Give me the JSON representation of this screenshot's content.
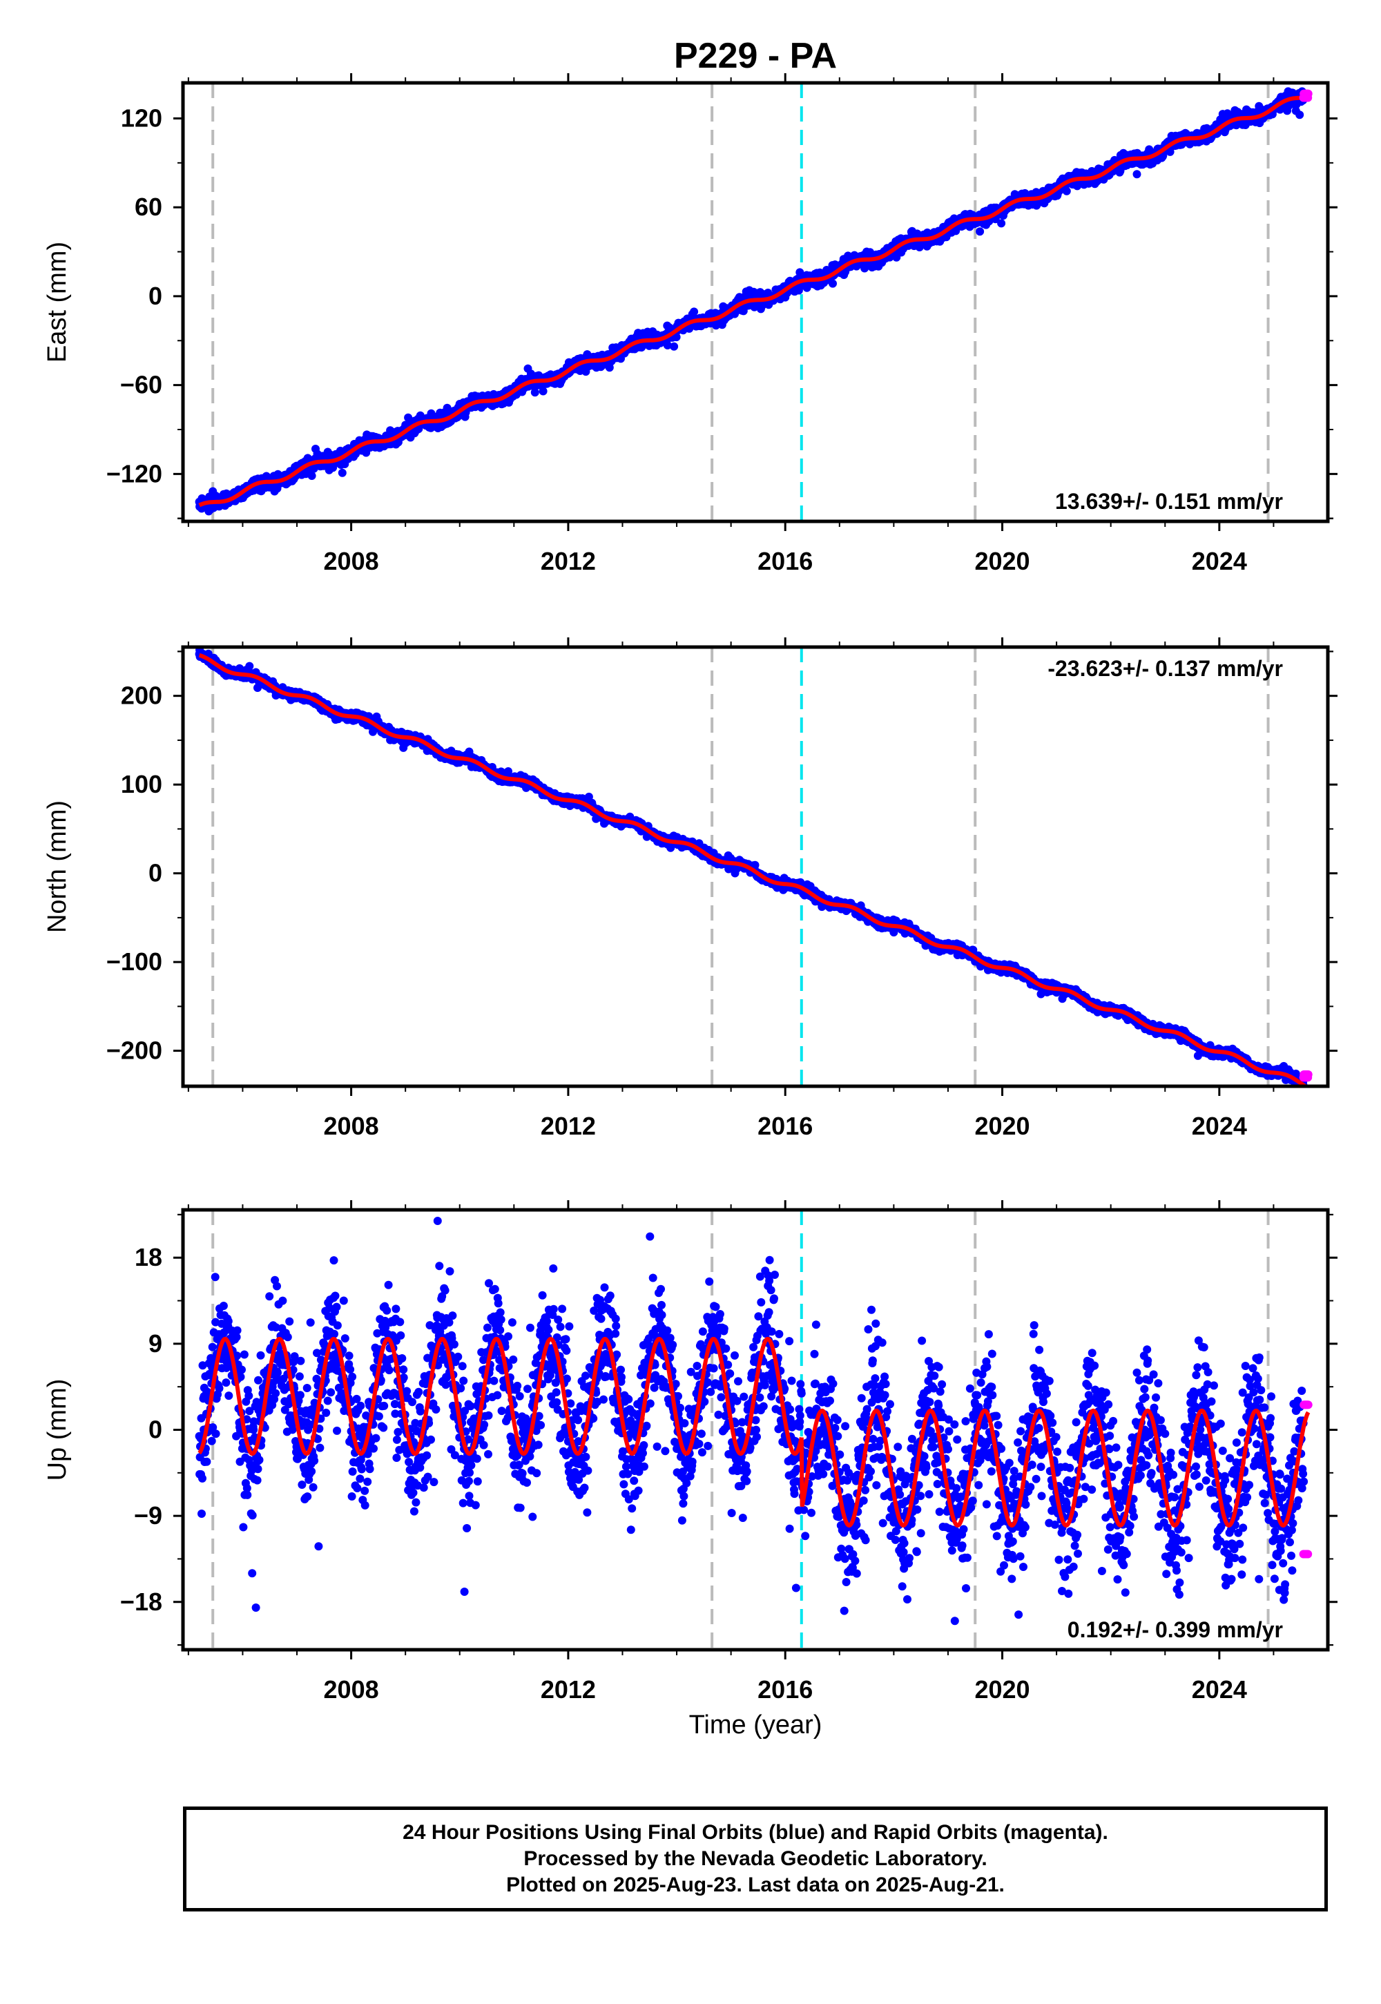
{
  "title": "P229 - PA",
  "xlabel": "Time (year)",
  "footer": {
    "line1": "24 Hour Positions Using Final Orbits (blue) and Rapid Orbits (magenta).",
    "line2": "Processed by the Nevada Geodetic Laboratory.",
    "line3": "Plotted on 2025-Aug-23. Last data on 2025-Aug-21."
  },
  "colors": {
    "final": "#0000ff",
    "rapid": "#ff00ff",
    "model": "#ff0000",
    "event_gray": "#bbbbbb",
    "event_cyan": "#00e5ee"
  },
  "chart_data": [
    {
      "type": "scatter",
      "panel": "east",
      "ylabel": "East (mm)",
      "xlim": [
        2004.9,
        2026.0
      ],
      "ylim": [
        -152,
        144
      ],
      "xticks": [
        2008,
        2012,
        2016,
        2020,
        2024
      ],
      "yticks": [
        -120,
        -60,
        0,
        60,
        120
      ],
      "rate_label": "13.639+/- 0.151 mm/yr",
      "rate_position": "bottom-right",
      "model": {
        "start_year": 2005.2,
        "end_year": 2025.64,
        "start_value": -143,
        "rate": 13.639,
        "seasonal_amplitude": 2,
        "noise": 2.2
      },
      "rapid_points": {
        "start_year": 2025.55,
        "end_year": 2025.64,
        "min": 134,
        "max": 139
      },
      "offset_events": [
        2005.45,
        2014.65,
        2019.5,
        2024.9
      ],
      "equipment_events": [
        2016.3
      ],
      "series": [
        {
          "name": "Final Orbits (blue)",
          "color": "#0000ff"
        },
        {
          "name": "Rapid Orbits (magenta)",
          "color": "#ff00ff"
        }
      ]
    },
    {
      "type": "scatter",
      "panel": "north",
      "ylabel": "North (mm)",
      "xlim": [
        2004.9,
        2026.0
      ],
      "ylim": [
        -240,
        255
      ],
      "xticks": [
        2008,
        2012,
        2016,
        2020,
        2024
      ],
      "yticks": [
        -200,
        -100,
        0,
        100,
        200
      ],
      "rate_label": "-23.623+/- 0.137 mm/yr",
      "rate_position": "top-right",
      "model": {
        "start_year": 2005.2,
        "end_year": 2025.64,
        "start_value": 243,
        "rate": -23.623,
        "seasonal_amplitude": 3,
        "noise": 2.5
      },
      "rapid_points": {
        "start_year": 2025.55,
        "end_year": 2025.64,
        "min": -230,
        "max": -224
      },
      "offset_events": [
        2005.45,
        2014.65,
        2019.5,
        2024.9
      ],
      "equipment_events": [
        2016.3
      ],
      "series": [
        {
          "name": "Final Orbits (blue)",
          "color": "#0000ff"
        },
        {
          "name": "Rapid Orbits (magenta)",
          "color": "#ff00ff"
        }
      ]
    },
    {
      "type": "scatter",
      "panel": "up",
      "ylabel": "Up (mm)",
      "xlim": [
        2004.9,
        2026.0
      ],
      "ylim": [
        -23,
        23
      ],
      "xticks": [
        2008,
        2012,
        2016,
        2020,
        2024
      ],
      "yticks": [
        -18,
        -9,
        0,
        9,
        18
      ],
      "rate_label": "0.192+/- 0.399 mm/yr",
      "rate_position": "bottom-right",
      "model_segments": [
        {
          "start_year": 2005.2,
          "end_year": 2016.3,
          "mean": 3.5,
          "amplitude": 6,
          "noise": 3.2
        },
        {
          "start_year": 2016.3,
          "end_year": 2025.64,
          "mean": -4,
          "amplitude": 6,
          "noise": 3.6
        }
      ],
      "rapid_points": {
        "start_year": 2025.55,
        "end_year": 2025.64,
        "min": -13,
        "max": 16
      },
      "offset_events": [
        2005.45,
        2014.65,
        2019.5,
        2024.9
      ],
      "equipment_events": [
        2016.3
      ],
      "series": [
        {
          "name": "Final Orbits (blue)",
          "color": "#0000ff"
        },
        {
          "name": "Rapid Orbits (magenta)",
          "color": "#ff00ff"
        }
      ]
    }
  ]
}
